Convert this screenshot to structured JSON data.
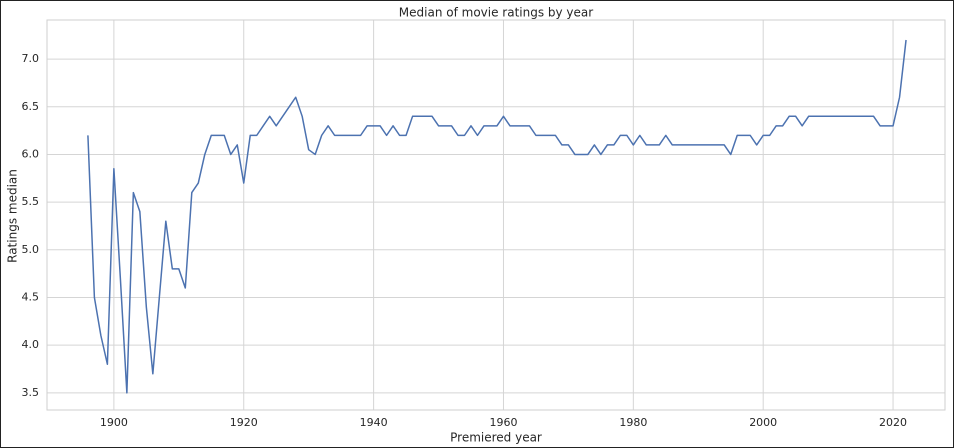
{
  "chart_data": {
    "type": "line",
    "title": "Median of movie ratings by year",
    "xlabel": "Premiered year",
    "ylabel": "Ratings median",
    "color": "#4c72b0",
    "grid": true,
    "xlim": [
      1889.7,
      2028
    ],
    "ylim": [
      3.32,
      7.41
    ],
    "xticks": [
      1900,
      1920,
      1940,
      1960,
      1980,
      2000,
      2020
    ],
    "yticks": [
      3.5,
      {
        "value": 4,
        "label": "4.0"
      },
      4.5,
      {
        "value": 5,
        "label": "5.0"
      },
      5.5,
      {
        "value": 6,
        "label": "6.0"
      },
      6.5,
      {
        "value": 7,
        "label": "7.0"
      }
    ],
    "x": [
      1896,
      1897,
      1898,
      1899,
      1900,
      1901,
      1902,
      1903,
      1904,
      1905,
      1906,
      1907,
      1908,
      1909,
      1910,
      1911,
      1912,
      1913,
      1914,
      1915,
      1916,
      1917,
      1918,
      1919,
      1920,
      1921,
      1922,
      1923,
      1924,
      1925,
      1926,
      1927,
      1928,
      1929,
      1930,
      1931,
      1932,
      1933,
      1934,
      1935,
      1936,
      1937,
      1938,
      1939,
      1940,
      1941,
      1942,
      1943,
      1944,
      1945,
      1946,
      1947,
      1948,
      1949,
      1950,
      1951,
      1952,
      1953,
      1954,
      1955,
      1956,
      1957,
      1958,
      1959,
      1960,
      1961,
      1962,
      1963,
      1964,
      1965,
      1966,
      1967,
      1968,
      1969,
      1970,
      1971,
      1972,
      1973,
      1974,
      1975,
      1976,
      1977,
      1978,
      1979,
      1980,
      1981,
      1982,
      1983,
      1984,
      1985,
      1986,
      1987,
      1988,
      1989,
      1990,
      1991,
      1992,
      1993,
      1994,
      1995,
      1996,
      1997,
      1998,
      1999,
      2000,
      2001,
      2002,
      2003,
      2004,
      2005,
      2006,
      2007,
      2008,
      2009,
      2010,
      2011,
      2012,
      2013,
      2014,
      2015,
      2016,
      2017,
      2018,
      2019,
      2020,
      2021,
      2022
    ],
    "values": [
      6.2,
      4.5,
      4.1,
      3.8,
      5.85,
      4.7,
      3.5,
      5.6,
      5.4,
      4.4,
      3.7,
      4.5,
      5.3,
      4.8,
      4.8,
      4.6,
      5.6,
      5.7,
      6.0,
      6.2,
      6.2,
      6.2,
      6.0,
      6.1,
      5.7,
      6.2,
      6.2,
      6.3,
      6.4,
      6.3,
      6.4,
      6.5,
      6.6,
      6.4,
      6.05,
      6.0,
      6.2,
      6.3,
      6.2,
      6.2,
      6.2,
      6.2,
      6.2,
      6.3,
      6.3,
      6.3,
      6.2,
      6.3,
      6.2,
      6.2,
      6.4,
      6.4,
      6.4,
      6.4,
      6.3,
      6.3,
      6.3,
      6.2,
      6.2,
      6.3,
      6.2,
      6.3,
      6.3,
      6.3,
      6.4,
      6.3,
      6.3,
      6.3,
      6.3,
      6.2,
      6.2,
      6.2,
      6.2,
      6.1,
      6.1,
      6.0,
      6.0,
      6.0,
      6.1,
      6.0,
      6.1,
      6.1,
      6.2,
      6.2,
      6.1,
      6.2,
      6.1,
      6.1,
      6.1,
      6.2,
      6.1,
      6.1,
      6.1,
      6.1,
      6.1,
      6.1,
      6.1,
      6.1,
      6.1,
      6.0,
      6.2,
      6.2,
      6.2,
      6.1,
      6.2,
      6.2,
      6.3,
      6.3,
      6.4,
      6.4,
      6.3,
      6.4,
      6.4,
      6.4,
      6.4,
      6.4,
      6.4,
      6.4,
      6.4,
      6.4,
      6.4,
      6.4,
      6.3,
      6.3,
      6.3,
      6.6,
      7.2
    ]
  }
}
